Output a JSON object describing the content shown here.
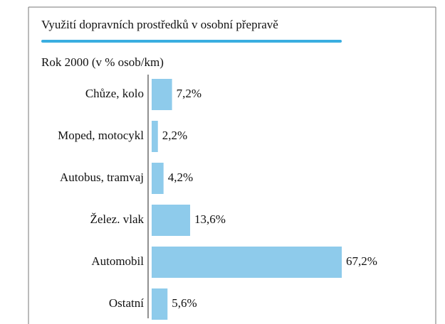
{
  "chart_data": {
    "type": "bar",
    "orientation": "horizontal",
    "title": "Využití dopravních prostředků v osobní přepravě",
    "subtitle": "Rok 2000 (v % osob/km)",
    "categories": [
      "Chůze, kolo",
      "Moped, motocykl",
      "Autobus, tramvaj",
      "Želez. vlak",
      "Automobil",
      "Ostatní"
    ],
    "values": [
      7.2,
      2.2,
      4.2,
      13.6,
      67.2,
      5.6
    ],
    "value_labels": [
      "7,2%",
      "2,2%",
      "4,2%",
      "13,6%",
      "67,2%",
      "5,6%"
    ],
    "color": "#8ecbeb"
  }
}
